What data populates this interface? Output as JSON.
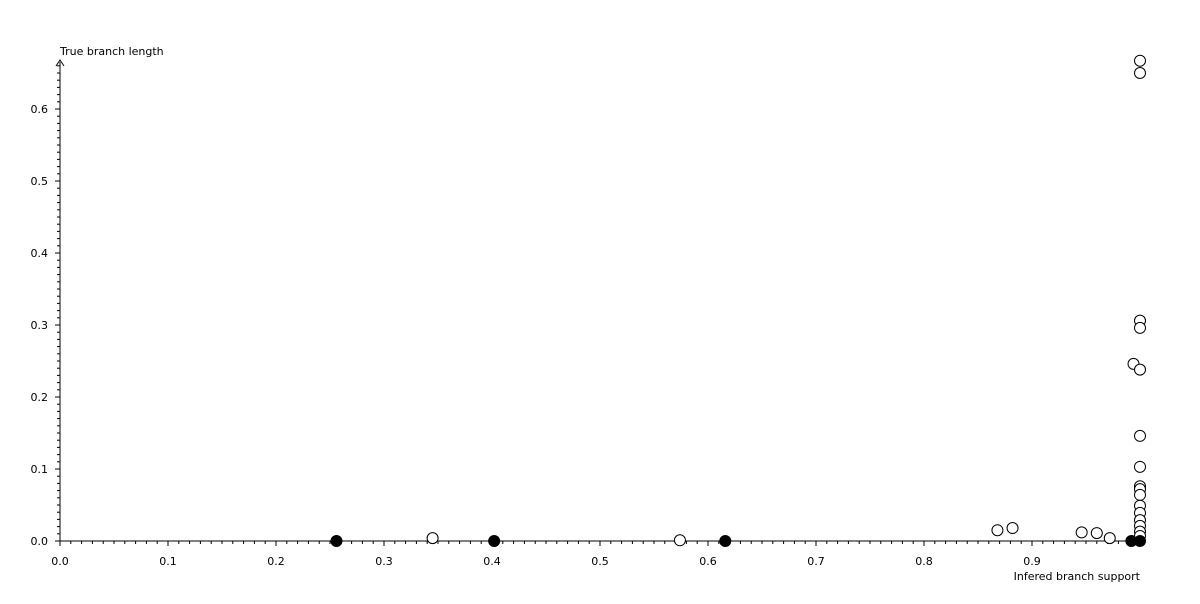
{
  "chart_data": {
    "type": "scatter",
    "xlabel": "Infered branch support",
    "ylabel": "True branch length",
    "xlim": [
      0,
      1.0
    ],
    "ylim": [
      0,
      0.67
    ],
    "x_ticks": [
      "0.0",
      "0.1",
      "0.2",
      "0.3",
      "0.4",
      "0.5",
      "0.6",
      "0.7",
      "0.8",
      "0.9"
    ],
    "y_ticks": [
      "0.0",
      "0.1",
      "0.2",
      "0.3",
      "0.4",
      "0.5",
      "0.6"
    ],
    "grid": false,
    "series": [
      {
        "marker": "filled-circle",
        "color": "#000000",
        "points": [
          [
            0.256,
            0
          ],
          [
            0.402,
            0
          ],
          [
            0.616,
            0
          ],
          [
            0.992,
            0
          ],
          [
            1.0,
            0
          ]
        ]
      },
      {
        "marker": "open-circle",
        "color": "#000000",
        "points": [
          [
            0.345,
            0.004
          ],
          [
            0.574,
            0.001
          ],
          [
            0.868,
            0.015
          ],
          [
            0.882,
            0.018
          ],
          [
            0.946,
            0.012
          ],
          [
            0.96,
            0.011
          ],
          [
            0.972,
            0.004
          ],
          [
            0.994,
            0.246
          ],
          [
            1.0,
            0.667
          ],
          [
            1.0,
            0.65
          ],
          [
            1.0,
            0.306
          ],
          [
            1.0,
            0.296
          ],
          [
            1.0,
            0.238
          ],
          [
            1.0,
            0.146
          ],
          [
            1.0,
            0.103
          ],
          [
            1.0,
            0.076
          ],
          [
            1.0,
            0.072
          ],
          [
            1.0,
            0.064
          ],
          [
            1.0,
            0.049
          ],
          [
            1.0,
            0.039
          ],
          [
            1.0,
            0.029
          ],
          [
            1.0,
            0.021
          ],
          [
            1.0,
            0.013
          ],
          [
            1.0,
            0.007
          ]
        ]
      }
    ]
  }
}
